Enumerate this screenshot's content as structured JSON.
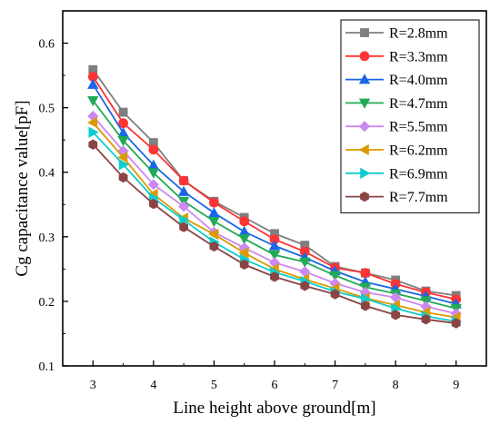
{
  "chart_data": {
    "type": "line",
    "title": "",
    "xlabel": "Line height above ground[m]",
    "ylabel": "Cg capacitance value[pF]",
    "xlim": [
      2.5,
      9.5
    ],
    "ylim": [
      0.1,
      0.65
    ],
    "xticks": [
      3,
      4,
      5,
      6,
      7,
      8,
      9
    ],
    "yticks": [
      0.1,
      0.2,
      0.3,
      0.4,
      0.5,
      0.6
    ],
    "x": [
      3,
      3.5,
      4,
      4.5,
      5,
      5.5,
      6,
      6.5,
      7,
      7.5,
      8,
      8.5,
      9
    ],
    "legend_position": "top-right",
    "series": [
      {
        "name": "R=2.8mm",
        "color": "#7f7f7f",
        "marker": "square",
        "values": [
          0.559,
          0.493,
          0.446,
          0.387,
          0.355,
          0.33,
          0.305,
          0.287,
          0.254,
          0.244,
          0.233,
          0.216,
          0.209
        ]
      },
      {
        "name": "R=3.3mm",
        "color": "#ff3333",
        "marker": "circle",
        "values": [
          0.548,
          0.476,
          0.435,
          0.387,
          0.353,
          0.324,
          0.296,
          0.277,
          0.252,
          0.244,
          0.227,
          0.214,
          0.203
        ]
      },
      {
        "name": "R=4.0mm",
        "color": "#1a66e6",
        "marker": "triangle-up",
        "values": [
          0.536,
          0.461,
          0.411,
          0.37,
          0.337,
          0.308,
          0.286,
          0.268,
          0.247,
          0.23,
          0.219,
          0.208,
          0.196
        ]
      },
      {
        "name": "R=4.7mm",
        "color": "#22aa55",
        "marker": "triangle-down",
        "values": [
          0.511,
          0.449,
          0.399,
          0.355,
          0.324,
          0.297,
          0.272,
          0.261,
          0.24,
          0.222,
          0.212,
          0.201,
          0.189
        ]
      },
      {
        "name": "R=5.5mm",
        "color": "#cc88ee",
        "marker": "diamond",
        "values": [
          0.487,
          0.433,
          0.381,
          0.347,
          0.307,
          0.283,
          0.26,
          0.246,
          0.228,
          0.214,
          0.206,
          0.192,
          0.181
        ]
      },
      {
        "name": "R=6.2mm",
        "color": "#dd9900",
        "marker": "triangle-left",
        "values": [
          0.477,
          0.423,
          0.366,
          0.329,
          0.304,
          0.275,
          0.25,
          0.234,
          0.22,
          0.205,
          0.194,
          0.183,
          0.175
        ]
      },
      {
        "name": "R=6.9mm",
        "color": "#11cccc",
        "marker": "triangle-right",
        "values": [
          0.462,
          0.412,
          0.36,
          0.326,
          0.292,
          0.265,
          0.245,
          0.231,
          0.215,
          0.204,
          0.189,
          0.177,
          0.169
        ]
      },
      {
        "name": "R=7.7mm",
        "color": "#8a4444",
        "marker": "hexagon",
        "values": [
          0.443,
          0.392,
          0.351,
          0.315,
          0.285,
          0.257,
          0.238,
          0.224,
          0.211,
          0.193,
          0.179,
          0.172,
          0.166
        ]
      }
    ]
  }
}
